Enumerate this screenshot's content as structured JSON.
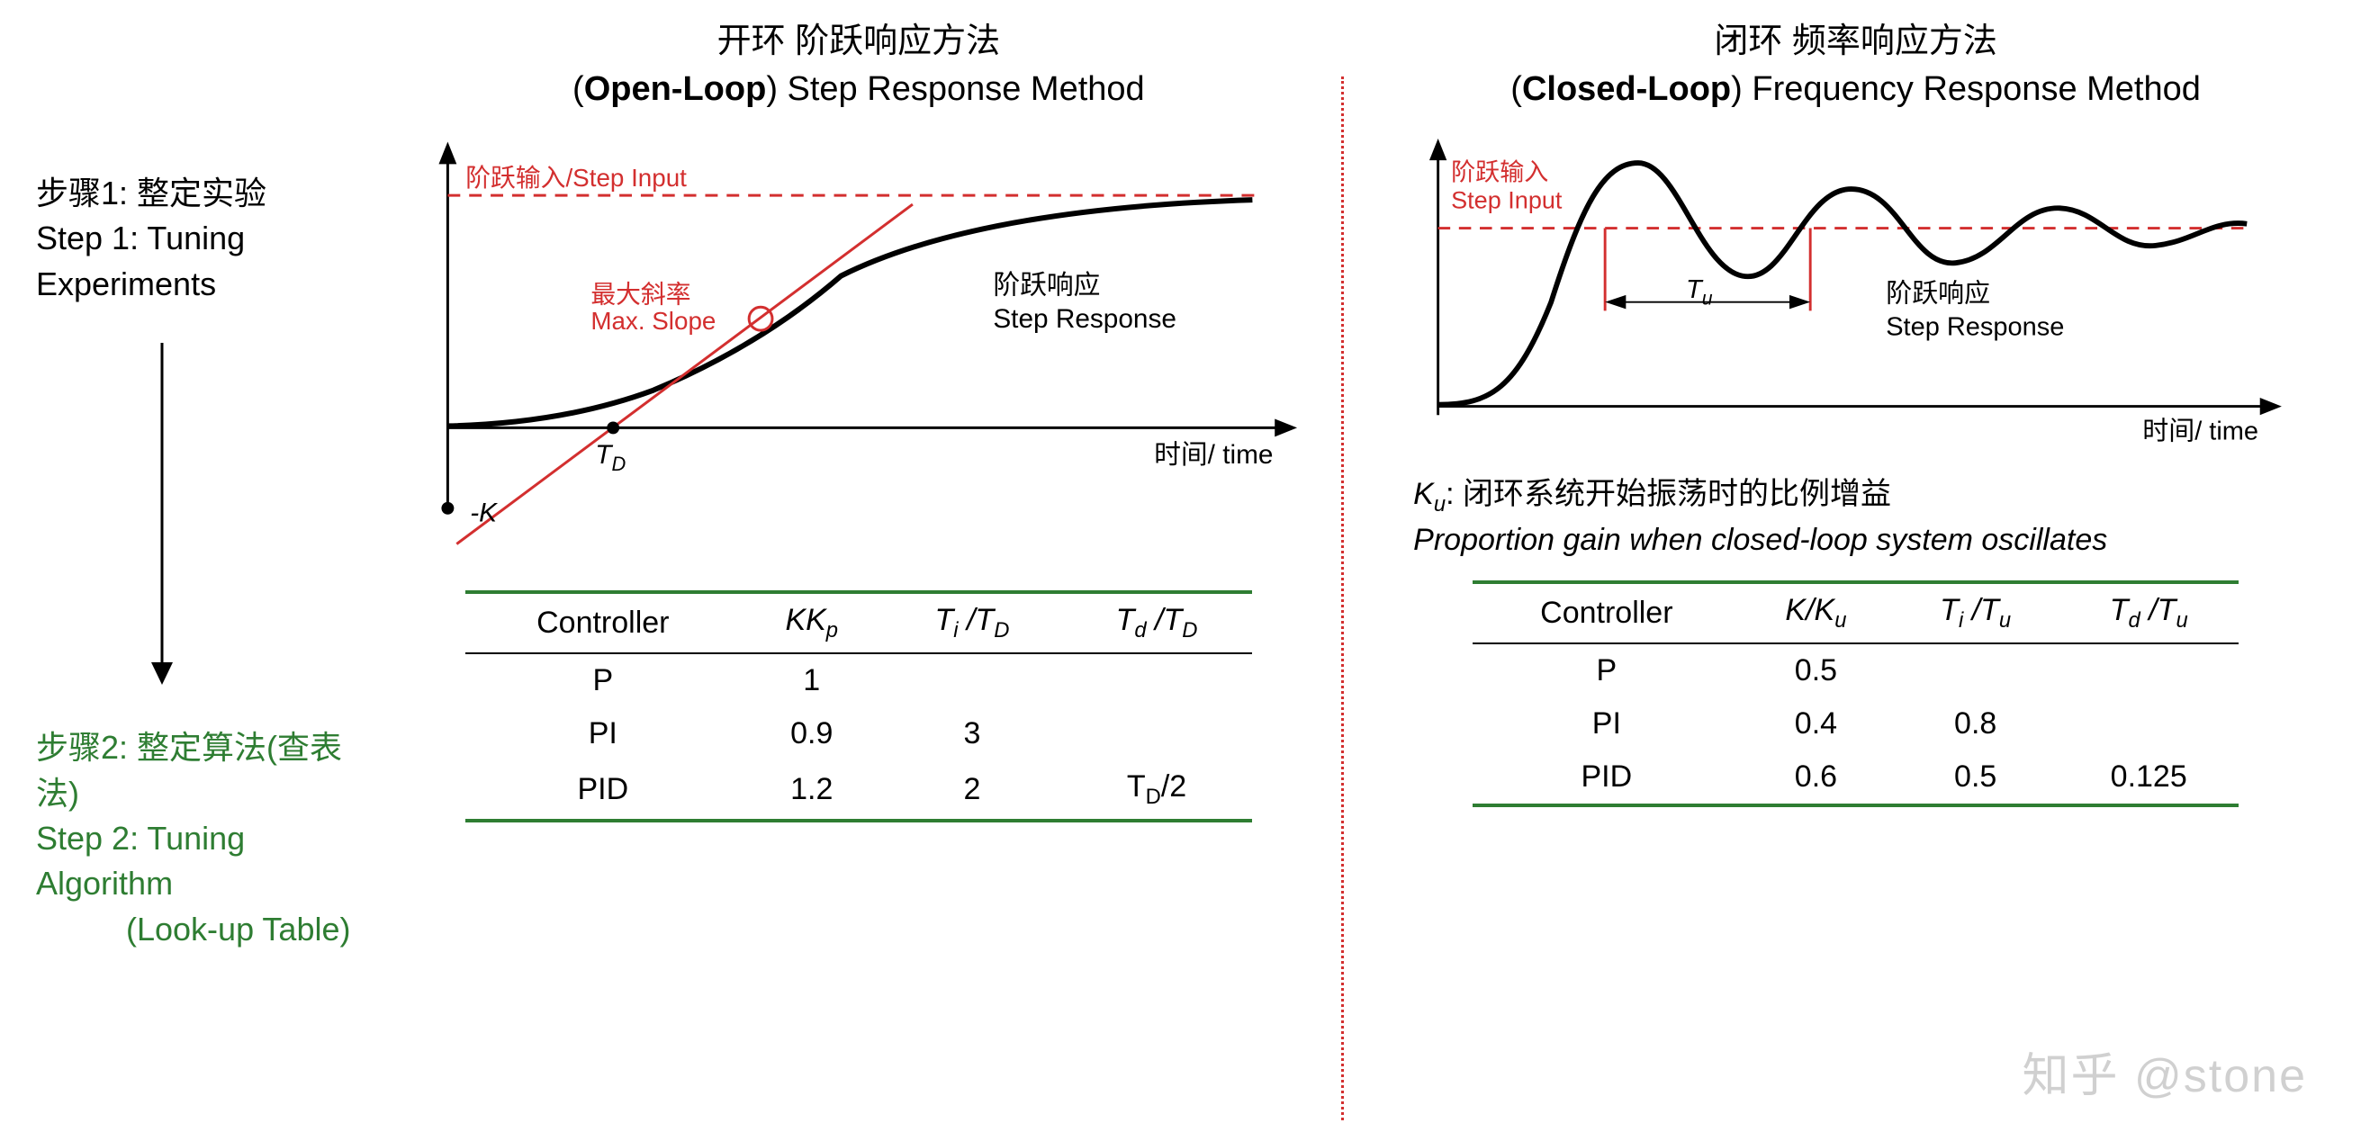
{
  "steps": {
    "step1_cn": "步骤1: 整定实验",
    "step1_en": "Step 1: Tuning Experiments",
    "step2_cn": "步骤2: 整定算法(查表法)",
    "step2_en": "Step 2: Tuning Algorithm",
    "step2_en2": "(Look-up Table)"
  },
  "openloop": {
    "title_cn": "开环  阶跃响应方法",
    "title_en_pre": "(",
    "title_en_bold": "Open-Loop",
    "title_en_post": ") Step Response Method",
    "graph": {
      "step_input_cn": "阶跃输入",
      "step_input_en": "/Step Input",
      "max_slope_cn": "最大斜率",
      "max_slope_en": "Max. Slope",
      "step_resp_cn": "阶跃响应",
      "step_resp_en": "Step Response",
      "time_label": "时间/ time",
      "td_label": "T",
      "td_sub": "D",
      "minus_k": "-K",
      "colors": {
        "axis": "#000000",
        "curve": "#000000",
        "red": "#d32f2f",
        "dash": "#d32f2f"
      },
      "line_width": 4
    },
    "table": {
      "headers": [
        "Controller",
        "KK<sub>p</sub>",
        "T<sub>i</sub> /T<sub>D</sub>",
        "T<sub>d</sub> /T<sub>D</sub>"
      ],
      "rows": [
        [
          "P",
          "1",
          "",
          ""
        ],
        [
          "PI",
          "0.9",
          "3",
          ""
        ],
        [
          "PID",
          "1.2",
          "2",
          "T<sub>D</sub>/2"
        ]
      ],
      "border_color": "#2e7d32"
    }
  },
  "closedloop": {
    "title_cn": "闭环 频率响应方法",
    "title_en_pre": "(",
    "title_en_bold": "Closed-Loop",
    "title_en_post": ") Frequency Response Method",
    "graph": {
      "step_input_cn": "阶跃输入",
      "step_input_en": "Step Input",
      "tu_label": "T",
      "tu_sub": "u",
      "step_resp_cn": "阶跃响应",
      "step_resp_en": "Step Response",
      "time_label": "时间/ time",
      "colors": {
        "axis": "#000000",
        "curve": "#000000",
        "red": "#d32f2f"
      },
      "line_width": 4
    },
    "ku_note_cn_pre": "K",
    "ku_note_cn_sub": "u",
    "ku_note_cn": ": 闭环系统开始振荡时的比例增益",
    "ku_note_en": "Proportion gain when closed-loop system oscillates",
    "table": {
      "headers": [
        "Controller",
        "K/K<sub>u</sub>",
        "T<sub>i</sub> /T<sub>u</sub>",
        "T<sub>d</sub> /T<sub>u</sub>"
      ],
      "rows": [
        [
          "P",
          "0.5",
          "",
          ""
        ],
        [
          "PI",
          "0.4",
          "0.8",
          ""
        ],
        [
          "PID",
          "0.6",
          "0.5",
          "0.125"
        ]
      ],
      "border_color": "#2e7d32"
    }
  },
  "watermark": "知乎 @stone"
}
